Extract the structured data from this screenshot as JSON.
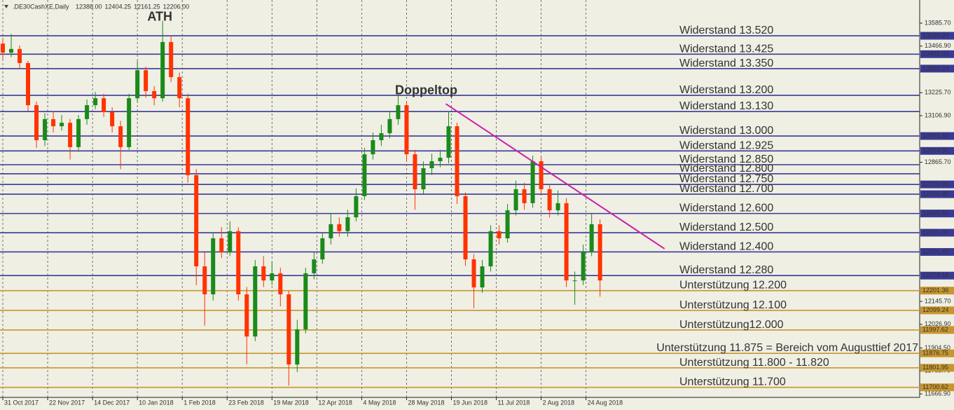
{
  "chart_data": {
    "type": "candlestick",
    "symbol": ".DE30CashXE,Daily",
    "header_values": [
      "12388.00",
      "12404.25",
      "12161.25",
      "12206.00"
    ],
    "background": "#efefe4",
    "up_color": "#1a8a1a",
    "down_color": "#ff3300",
    "xlim": [
      -1,
      327
    ],
    "ylim": [
      11648.8,
      13705.4
    ],
    "xticks": [
      {
        "value": 0,
        "label": "31 Oct 2017"
      },
      {
        "value": 16,
        "label": "22 Nov 2017"
      },
      {
        "value": 32,
        "label": "14 Dec 2017"
      },
      {
        "value": 48,
        "label": "10 Jan 2018"
      },
      {
        "value": 64,
        "label": "1 Feb 2018"
      },
      {
        "value": 80,
        "label": "23 Feb 2018"
      },
      {
        "value": 96,
        "label": "19 Mar 2018"
      },
      {
        "value": 112,
        "label": "12 Apr 2018"
      },
      {
        "value": 128,
        "label": "4 May 2018"
      },
      {
        "value": 144,
        "label": "28 May 2018"
      },
      {
        "value": 160,
        "label": "19 Jun 2018"
      },
      {
        "value": 176,
        "label": "11 Jul 2018"
      },
      {
        "value": 192,
        "label": "2 Aug 2018"
      },
      {
        "value": 208,
        "label": "24 Aug 2018"
      }
    ],
    "yticks": [
      {
        "value": 13585.7,
        "label": "13585.70"
      },
      {
        "value": 13466.9,
        "label": "13466.90"
      },
      {
        "value": 13225.7,
        "label": "13225.70"
      },
      {
        "value": 13106.9,
        "label": "13106.90"
      },
      {
        "value": 12865.7,
        "label": "12865.70"
      },
      {
        "value": 12145.7,
        "label": "12145.70"
      },
      {
        "value": 12026.9,
        "label": "12026.90"
      },
      {
        "value": 11904.5,
        "label": "11904.50"
      },
      {
        "value": 11785.7,
        "label": "11785.70"
      },
      {
        "value": 11666.9,
        "label": "11666.90"
      }
    ],
    "grid": true,
    "x": [
      0,
      3,
      6,
      9,
      12,
      15,
      18,
      21,
      24,
      27,
      30,
      33,
      36,
      39,
      42,
      45,
      48,
      51,
      54,
      57,
      60,
      63,
      66,
      69,
      72,
      75,
      78,
      81,
      84,
      87,
      90,
      93,
      96,
      99,
      102,
      105,
      108,
      111,
      114,
      117,
      120,
      123,
      126,
      129,
      132,
      135,
      138,
      141,
      144,
      147,
      150,
      153,
      156,
      159,
      162,
      165,
      168,
      171,
      174,
      177,
      180,
      183,
      186,
      189,
      192,
      195,
      198,
      201,
      204,
      207,
      210,
      213
    ],
    "open": [
      13480,
      13433,
      13452,
      13379,
      13161,
      12980,
      13089,
      13052,
      13070,
      12944,
      13089,
      13161,
      13197,
      13125,
      13052,
      12944,
      13197,
      13342,
      13234,
      13197,
      13488,
      13306,
      13197,
      12799,
      12327,
      12182,
      12472,
      12400,
      12509,
      12182,
      11964,
      12327,
      12254,
      12291,
      12182,
      11819,
      12001,
      12291,
      12363,
      12472,
      12545,
      12509,
      12581,
      12690,
      12907,
      12980,
      13016,
      13089,
      13161,
      12907,
      12726,
      12835,
      12871,
      12889,
      13052,
      12690,
      12363,
      12218,
      12327,
      12509,
      12472,
      12617,
      12726,
      12654,
      12871,
      12726,
      12617,
      12654,
      12254,
      12254,
      12400,
      12545
    ],
    "high": [
      13510,
      13530,
      13470,
      13390,
      13180,
      13120,
      13130,
      13110,
      13090,
      13110,
      13190,
      13230,
      13220,
      13150,
      13080,
      13220,
      13390,
      13360,
      13260,
      13597,
      13520,
      13330,
      13220,
      12830,
      12400,
      12500,
      12530,
      12560,
      12530,
      12220,
      12360,
      12380,
      12350,
      12320,
      12200,
      12050,
      12320,
      12400,
      12500,
      12600,
      12580,
      12620,
      12730,
      12940,
      13020,
      13060,
      13130,
      13220,
      13180,
      12930,
      12870,
      12910,
      12930,
      13130,
      13070,
      12710,
      12390,
      12360,
      12540,
      12540,
      12650,
      12770,
      12760,
      12900,
      12890,
      12750,
      12720,
      12680,
      12300,
      12440,
      12600,
      12570
    ],
    "low": [
      13400,
      13410,
      13350,
      13130,
      12940,
      12950,
      13020,
      13030,
      12880,
      12920,
      13060,
      13140,
      13100,
      13020,
      12830,
      12930,
      13180,
      13200,
      13160,
      13180,
      13280,
      13150,
      12760,
      12230,
      12020,
      12150,
      12370,
      12380,
      12150,
      11820,
      11940,
      12220,
      12230,
      12120,
      11710,
      11780,
      11980,
      12260,
      12340,
      12440,
      12480,
      12480,
      12560,
      12670,
      12880,
      12950,
      12990,
      13060,
      12870,
      12620,
      12700,
      12800,
      12840,
      12860,
      12650,
      12330,
      12110,
      12190,
      12300,
      12440,
      12450,
      12590,
      12620,
      12630,
      12700,
      12580,
      12590,
      12220,
      12128,
      12230,
      12380,
      12170
    ],
    "close": [
      13433,
      13452,
      13379,
      13161,
      12980,
      13089,
      13052,
      13070,
      12944,
      13089,
      13161,
      13197,
      13125,
      13052,
      12944,
      13197,
      13342,
      13234,
      13197,
      13488,
      13306,
      13197,
      12799,
      12327,
      12182,
      12472,
      12400,
      12509,
      12182,
      11964,
      12327,
      12254,
      12291,
      12182,
      11819,
      12001,
      12291,
      12363,
      12472,
      12545,
      12509,
      12581,
      12690,
      12907,
      12980,
      13016,
      13089,
      13161,
      12907,
      12726,
      12835,
      12871,
      12889,
      13052,
      12690,
      12363,
      12218,
      12327,
      12509,
      12472,
      12617,
      12726,
      12654,
      12871,
      12726,
      12617,
      12654,
      12254,
      12254,
      12400,
      12545,
      12254
    ],
    "levels": [
      {
        "name": "Widerstand 13.520",
        "value": 13520.24,
        "label": "13520.24",
        "color": "#3a3a96"
      },
      {
        "name": "Widerstand 13.425",
        "value": 13425.03,
        "label": "13425.03",
        "color": "#3a3a96"
      },
      {
        "name": "Widerstand 13.350",
        "value": 13350.24,
        "label": "13350.24",
        "color": "#3a3a96"
      },
      {
        "name": "Widerstand 13.200",
        "value": 13212,
        "color": "#3a3a96"
      },
      {
        "name": "Widerstand 13.130",
        "value": 13128,
        "color": "#3a3a96"
      },
      {
        "name": "Widerstand 13.000",
        "value": 13001.52,
        "label": "13001.52",
        "color": "#3a3a96"
      },
      {
        "name": "Widerstand 12.925",
        "value": 12924.5,
        "label": "12924.50",
        "color": "#3a3a96"
      },
      {
        "name": "Widerstand 12.850",
        "value": 12853,
        "color": "#3a3a96"
      },
      {
        "name": "Widerstand  12.800",
        "value": 12806,
        "color": "#3a3a96"
      },
      {
        "name": "Widerstand 12.750",
        "value": 12750.91,
        "label": "12750.91",
        "color": "#3a3a96"
      },
      {
        "name": "Widerstand 12.700",
        "value": 12700.45,
        "label": "12700.45",
        "color": "#3a3a96"
      },
      {
        "name": "Widerstand 12.600",
        "value": 12600.5,
        "label": "12600.50",
        "color": "#3a3a96"
      },
      {
        "name": "Widerstand 12.500",
        "value": 12501.07,
        "label": "12501.07",
        "color": "#3a3a96"
      },
      {
        "name": "Widerstand 12.400",
        "value": 12401.49,
        "label": "12401.49",
        "color": "#3a3a96"
      },
      {
        "name": "Widerstand 12.280",
        "value": 12279.16,
        "label": "12279.16",
        "color": "#3a3a96"
      },
      {
        "name": "Unterstützung 12.200",
        "value": 12201.36,
        "label": "12201.36",
        "color": "#c8962e"
      },
      {
        "name": "Unterstützung 12.100",
        "value": 12099.24,
        "label": "12099.24",
        "color": "#c8962e"
      },
      {
        "name": "Unterstützung12.000",
        "value": 11997.62,
        "label": "11997.62",
        "color": "#c8962e"
      },
      {
        "name": "Unterstützung 11.875 = Bereich vom Augusttief 2017",
        "value": 11876.75,
        "label": "11876.75",
        "color": "#c8962e"
      },
      {
        "name": "Unterstützung 11.800 - 11.820",
        "value": 11801.95,
        "label": "11801.95",
        "color": "#c8962e"
      },
      {
        "name": "Unterstützung 11.700",
        "value": 11700.62,
        "label": "11700.62",
        "color": "#c8962e"
      }
    ],
    "trendline": {
      "x": [
        158,
        236
      ],
      "y": [
        13168,
        12418
      ],
      "color": "#cc1fa8"
    },
    "annotations": [
      {
        "text": "ATH",
        "x": 56,
        "y": 13615,
        "color": "#1e9a3a"
      },
      {
        "text": "Doppeltop",
        "x": 151,
        "y": 13234,
        "color": "#2ecc40"
      }
    ]
  }
}
